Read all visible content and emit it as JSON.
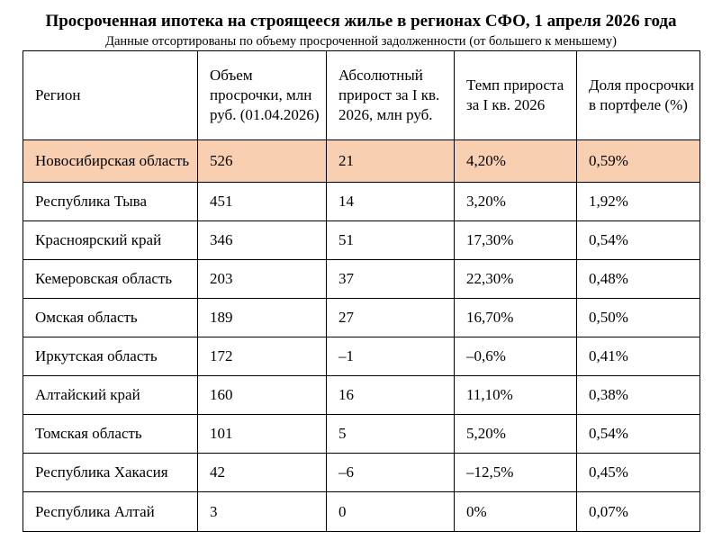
{
  "header": {
    "title": "Просроченная ипотека на строящееся жилье в регионах СФО, 1 апреля 2026 года",
    "subtitle": "Данные отсортированы по объему просроченной задолженности (от большего к меньшему)"
  },
  "table": {
    "columns": [
      "Регион",
      "Объем просрочки, млн руб. (01.04.2026)",
      "Абсолютный прирост за I кв. 2026, млн руб.",
      "Темп прироста за I кв. 2026",
      "Доля просрочки в портфеле (%)"
    ],
    "rows": [
      [
        "Новосибирская область",
        "526",
        "21",
        "4,20%",
        "0,59%"
      ],
      [
        "Республика Тыва",
        "451",
        "14",
        "3,20%",
        "1,92%"
      ],
      [
        "Красноярский край",
        "346",
        "51",
        "17,30%",
        "0,54%"
      ],
      [
        "Кемеровская область",
        "203",
        "37",
        "22,30%",
        "0,48%"
      ],
      [
        "Омская область",
        "189",
        "27",
        "16,70%",
        "0,50%"
      ],
      [
        "Иркутская область",
        "172",
        "–1",
        "–0,6%",
        "0,41%"
      ],
      [
        "Алтайский край",
        "160",
        "16",
        "11,10%",
        "0,38%"
      ],
      [
        "Томская область",
        "101",
        "5",
        "5,20%",
        "0,54%"
      ],
      [
        "Республика Хакасия",
        "42",
        "–6",
        "–12,5%",
        "0,45%"
      ],
      [
        "Республика Алтай",
        "3",
        "0",
        "0%",
        "0,07%"
      ]
    ],
    "highlight_row_color": "#f9cfb2"
  }
}
